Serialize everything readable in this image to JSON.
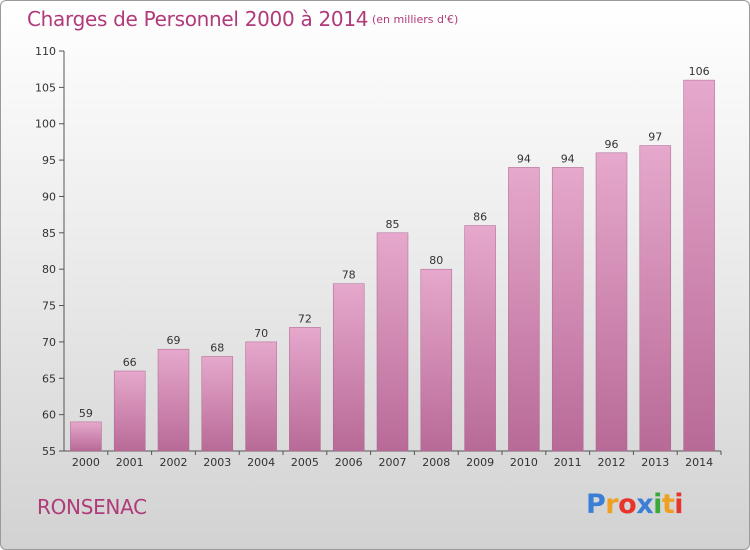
{
  "chart_data": {
    "type": "bar",
    "title": "Charges de Personnel 2000 à 2014",
    "subtitle": "(en milliers d'€)",
    "categories": [
      "2000",
      "2001",
      "2002",
      "2003",
      "2004",
      "2005",
      "2006",
      "2007",
      "2008",
      "2009",
      "2010",
      "2011",
      "2012",
      "2013",
      "2014"
    ],
    "values": [
      59,
      66,
      69,
      68,
      70,
      72,
      78,
      85,
      80,
      86,
      94,
      94,
      96,
      97,
      106
    ],
    "ylim": [
      55,
      110
    ],
    "yticks": [
      55,
      60,
      65,
      70,
      75,
      80,
      85,
      90,
      95,
      100,
      105,
      110
    ],
    "grid": false,
    "legend": "none",
    "bar_color": "#d98bb7",
    "label": "RONSENAC"
  },
  "colors": {
    "title": "#b03a7a",
    "bar_light": "#e6a8cc",
    "bar_dark": "#b86a97"
  },
  "logo": {
    "icon": "proxiti-logo",
    "letters": [
      "P",
      "r",
      "o",
      "x",
      "i",
      "t",
      "i"
    ],
    "letter_colors": [
      "#3a7fd5",
      "#f0a020",
      "#e8352b",
      "#3a7fd5",
      "#3aa83a",
      "#f0a020",
      "#e8352b"
    ]
  }
}
